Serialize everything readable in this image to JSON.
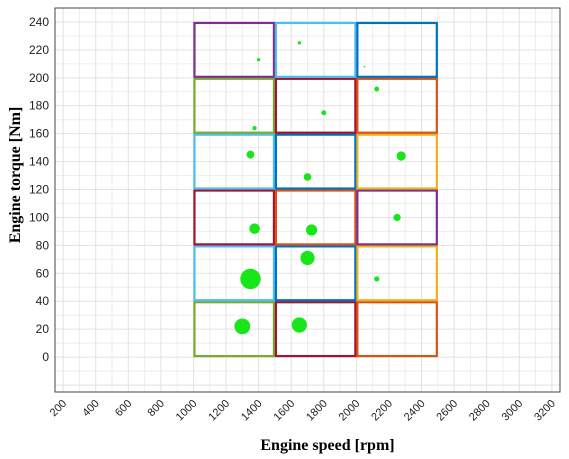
{
  "chart_data": {
    "type": "scatter",
    "title": "",
    "xlabel": "Engine speed [rpm]",
    "ylabel": "Engine torque [Nm]",
    "xlim": [
      150,
      3250
    ],
    "ylim": [
      -25,
      250
    ],
    "grid": true,
    "x_ticks": [
      200,
      400,
      600,
      800,
      1000,
      1200,
      1400,
      1600,
      1800,
      2000,
      2200,
      2400,
      2600,
      2800,
      3000,
      3200
    ],
    "y_ticks": [
      0,
      20,
      40,
      60,
      80,
      100,
      120,
      140,
      160,
      180,
      200,
      220,
      240
    ],
    "marker_color": "#19e619",
    "points": [
      {
        "x": 1300,
        "y": 22,
        "size": 4.8
      },
      {
        "x": 1650,
        "y": 23,
        "size": 4.6
      },
      {
        "x": 1350,
        "y": 56,
        "size": 6.2
      },
      {
        "x": 2125,
        "y": 56,
        "size": 1.6
      },
      {
        "x": 1700,
        "y": 71,
        "size": 4.3
      },
      {
        "x": 1375,
        "y": 92,
        "size": 3.2
      },
      {
        "x": 1725,
        "y": 91,
        "size": 3.4
      },
      {
        "x": 2250,
        "y": 100,
        "size": 2.2
      },
      {
        "x": 1350,
        "y": 145,
        "size": 2.4
      },
      {
        "x": 1700,
        "y": 129,
        "size": 2.3
      },
      {
        "x": 2275,
        "y": 144,
        "size": 2.8
      },
      {
        "x": 1375,
        "y": 164,
        "size": 1.3
      },
      {
        "x": 1800,
        "y": 175,
        "size": 1.5
      },
      {
        "x": 2125,
        "y": 192,
        "size": 1.5
      },
      {
        "x": 1400,
        "y": 213,
        "size": 1.0
      },
      {
        "x": 1650,
        "y": 225,
        "size": 1.0
      },
      {
        "x": 2050,
        "y": 208,
        "size": 0.5
      }
    ],
    "cells": [
      {
        "x0": 1000,
        "x1": 1500,
        "y0": 0,
        "y1": 40,
        "color": "#77ac30"
      },
      {
        "x0": 1500,
        "x1": 2000,
        "y0": 0,
        "y1": 40,
        "color": "#a2142f"
      },
      {
        "x0": 2000,
        "x1": 2500,
        "y0": 0,
        "y1": 40,
        "color": "#d95319"
      },
      {
        "x0": 1000,
        "x1": 1500,
        "y0": 40,
        "y1": 80,
        "color": "#4dbeee"
      },
      {
        "x0": 1500,
        "x1": 2000,
        "y0": 40,
        "y1": 80,
        "color": "#0072bd"
      },
      {
        "x0": 2000,
        "x1": 2500,
        "y0": 40,
        "y1": 80,
        "color": "#edb120"
      },
      {
        "x0": 1000,
        "x1": 1500,
        "y0": 80,
        "y1": 120,
        "color": "#a2142f"
      },
      {
        "x0": 1500,
        "x1": 2000,
        "y0": 80,
        "y1": 120,
        "color": "#d95319"
      },
      {
        "x0": 2000,
        "x1": 2500,
        "y0": 80,
        "y1": 120,
        "color": "#7e2f8e"
      },
      {
        "x0": 1000,
        "x1": 1500,
        "y0": 120,
        "y1": 160,
        "color": "#4dbeee"
      },
      {
        "x0": 1500,
        "x1": 2000,
        "y0": 120,
        "y1": 160,
        "color": "#0072bd"
      },
      {
        "x0": 2000,
        "x1": 2500,
        "y0": 120,
        "y1": 160,
        "color": "#edb120"
      },
      {
        "x0": 1000,
        "x1": 1500,
        "y0": 160,
        "y1": 200,
        "color": "#77ac30"
      },
      {
        "x0": 1500,
        "x1": 2000,
        "y0": 160,
        "y1": 200,
        "color": "#a2142f"
      },
      {
        "x0": 2000,
        "x1": 2500,
        "y0": 160,
        "y1": 200,
        "color": "#d95319"
      },
      {
        "x0": 1000,
        "x1": 1500,
        "y0": 200,
        "y1": 240,
        "color": "#7e2f8e"
      },
      {
        "x0": 1500,
        "x1": 2000,
        "y0": 200,
        "y1": 240,
        "color": "#4dbeee"
      },
      {
        "x0": 2000,
        "x1": 2500,
        "y0": 200,
        "y1": 240,
        "color": "#0072bd"
      }
    ]
  }
}
